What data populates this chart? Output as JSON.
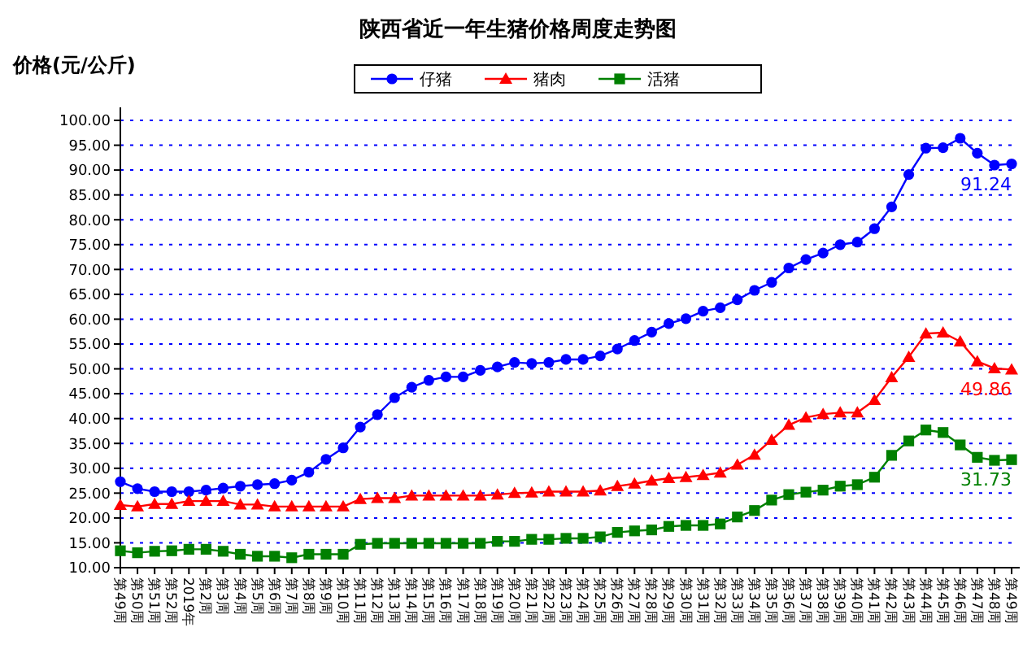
{
  "chart_data": {
    "type": "line",
    "title": "陕西省近一年生猪价格周度走势图",
    "ylabel": "价格(元/公斤)",
    "categories": [
      "第49周",
      "第50周",
      "第51周",
      "第52周",
      "2019年",
      "第2周",
      "第3周",
      "第4周",
      "第5周",
      "第6周",
      "第7周",
      "第8周",
      "第9周",
      "第10周",
      "第11周",
      "第12周",
      "第13周",
      "第14周",
      "第15周",
      "第16周",
      "第17周",
      "第18周",
      "第19周",
      "第20周",
      "第21周",
      "第22周",
      "第23周",
      "第24周",
      "第25周",
      "第26周",
      "第27周",
      "第28周",
      "第29周",
      "第30周",
      "第31周",
      "第32周",
      "第33周",
      "第34周",
      "第35周",
      "第36周",
      "第37周",
      "第38周",
      "第39周",
      "第40周",
      "第41周",
      "第42周",
      "第43周",
      "第44周",
      "第45周",
      "第46周",
      "第47周",
      "第48周",
      "第49周"
    ],
    "series": [
      {
        "name": "仔猪",
        "color": "#0000ff",
        "marker": "circle",
        "values": [
          27.3,
          25.9,
          25.3,
          25.3,
          25.3,
          25.6,
          26.0,
          26.4,
          26.7,
          26.9,
          27.6,
          29.2,
          31.8,
          34.1,
          38.3,
          40.8,
          44.2,
          46.3,
          47.7,
          48.4,
          48.4,
          49.7,
          50.4,
          51.3,
          51.1,
          51.3,
          51.9,
          51.9,
          52.6,
          54.0,
          55.7,
          57.4,
          59.1,
          60.1,
          61.6,
          62.3,
          63.9,
          65.8,
          67.4,
          70.3,
          72.0,
          73.3,
          75.0,
          75.5,
          78.2,
          82.6,
          89.1,
          94.4,
          94.5,
          96.4,
          93.4,
          91.0,
          91.24
        ],
        "value_labels": [
          null,
          null,
          null,
          null,
          null,
          null,
          null,
          null,
          null,
          null,
          null,
          null,
          null,
          null,
          null,
          null,
          null,
          null,
          null,
          null,
          null,
          null,
          null,
          null,
          null,
          null,
          null,
          null,
          null,
          null,
          null,
          null,
          null,
          null,
          null,
          null,
          null,
          null,
          null,
          null,
          null,
          null,
          null,
          null,
          null,
          null,
          null,
          null,
          null,
          null,
          null,
          null,
          "91.24"
        ]
      },
      {
        "name": "猪肉",
        "color": "#ff0000",
        "marker": "triangle",
        "values": [
          22.6,
          22.3,
          22.8,
          22.8,
          23.4,
          23.4,
          23.4,
          22.7,
          22.7,
          22.3,
          22.3,
          22.3,
          22.3,
          22.3,
          23.8,
          24.0,
          24.0,
          24.5,
          24.5,
          24.5,
          24.5,
          24.5,
          24.7,
          25.0,
          25.1,
          25.3,
          25.3,
          25.3,
          25.5,
          26.4,
          26.9,
          27.5,
          28.0,
          28.2,
          28.6,
          29.1,
          30.7,
          32.7,
          35.7,
          38.7,
          40.2,
          40.9,
          41.2,
          41.2,
          43.7,
          48.3,
          52.4,
          57.1,
          57.3,
          55.5,
          51.5,
          50.1,
          49.86
        ],
        "value_labels": [
          null,
          null,
          null,
          null,
          null,
          null,
          null,
          null,
          null,
          null,
          null,
          null,
          null,
          null,
          null,
          null,
          null,
          null,
          null,
          null,
          null,
          null,
          null,
          null,
          null,
          null,
          null,
          null,
          null,
          null,
          null,
          null,
          null,
          null,
          null,
          null,
          null,
          null,
          null,
          null,
          null,
          null,
          null,
          null,
          null,
          null,
          null,
          null,
          null,
          null,
          null,
          null,
          "49.86"
        ]
      },
      {
        "name": "活猪",
        "color": "#008000",
        "marker": "square",
        "values": [
          13.4,
          13.0,
          13.3,
          13.4,
          13.7,
          13.7,
          13.3,
          12.7,
          12.3,
          12.3,
          12.0,
          12.7,
          12.7,
          12.7,
          14.7,
          14.9,
          14.9,
          14.9,
          14.9,
          14.9,
          14.9,
          14.9,
          15.3,
          15.3,
          15.7,
          15.7,
          15.9,
          15.9,
          16.2,
          17.1,
          17.4,
          17.6,
          18.3,
          18.5,
          18.5,
          18.8,
          20.2,
          21.5,
          23.6,
          24.7,
          25.2,
          25.6,
          26.4,
          26.7,
          28.2,
          32.6,
          35.5,
          37.7,
          37.2,
          34.7,
          32.2,
          31.6,
          31.73
        ],
        "value_labels": [
          null,
          null,
          null,
          null,
          null,
          null,
          null,
          null,
          null,
          null,
          null,
          null,
          null,
          null,
          null,
          null,
          null,
          null,
          null,
          null,
          null,
          null,
          null,
          null,
          null,
          null,
          null,
          null,
          null,
          null,
          null,
          null,
          null,
          null,
          null,
          null,
          null,
          null,
          null,
          null,
          null,
          null,
          null,
          null,
          null,
          null,
          null,
          null,
          null,
          null,
          null,
          null,
          "31.73"
        ]
      }
    ],
    "ylim": [
      10,
      100
    ],
    "yticks": [
      {
        "value": 10,
        "label": "10.00"
      },
      {
        "value": 15,
        "label": "15.00"
      },
      {
        "value": 20,
        "label": "20.00"
      },
      {
        "value": 25,
        "label": "25.00"
      },
      {
        "value": 30,
        "label": "30.00"
      },
      {
        "value": 35,
        "label": "35.00"
      },
      {
        "value": 40,
        "label": "40.00"
      },
      {
        "value": 45,
        "label": "45.00"
      },
      {
        "value": 50,
        "label": "50.00"
      },
      {
        "value": 55,
        "label": "55.00"
      },
      {
        "value": 60,
        "label": "60.00"
      },
      {
        "value": 65,
        "label": "65.00"
      },
      {
        "value": 70,
        "label": "70.00"
      },
      {
        "value": 75,
        "label": "75.00"
      },
      {
        "value": 80,
        "label": "80.00"
      },
      {
        "value": 85,
        "label": "85.00"
      },
      {
        "value": 90,
        "label": "90.00"
      },
      {
        "value": 95,
        "label": "95.00"
      },
      {
        "value": 100,
        "label": "100.00"
      }
    ],
    "grid": "y",
    "legend": "top",
    "line_style": "solid"
  }
}
